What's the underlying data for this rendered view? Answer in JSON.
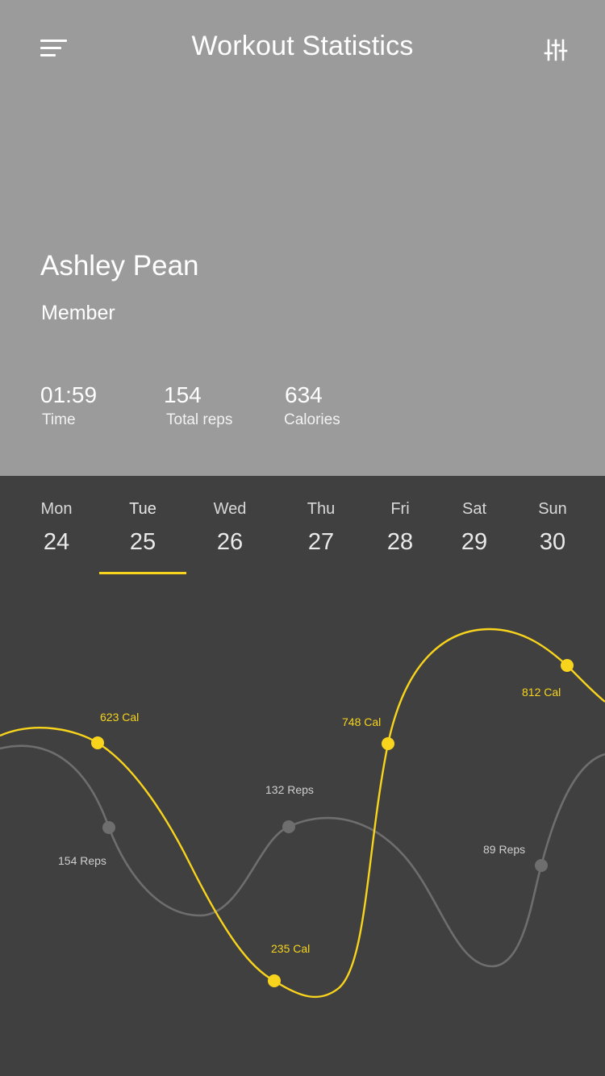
{
  "header": {
    "title": "Workout Statistics",
    "menu_icon": "hamburger-menu-icon",
    "filter_icon": "sliders-icon"
  },
  "profile": {
    "name": "Ashley Pean",
    "role": "Member"
  },
  "stats": [
    {
      "value": "01:59",
      "label": "Time"
    },
    {
      "value": "154",
      "label": "Total reps"
    },
    {
      "value": "634",
      "label": "Calories"
    }
  ],
  "days": [
    {
      "name": "Mon",
      "date": "24"
    },
    {
      "name": "Tue",
      "date": "25"
    },
    {
      "name": "Wed",
      "date": "26"
    },
    {
      "name": "Thu",
      "date": "27"
    },
    {
      "name": "Fri",
      "date": "28"
    },
    {
      "name": "Sat",
      "date": "29"
    },
    {
      "name": "Sun",
      "date": "30"
    }
  ],
  "selected_day": "Tue",
  "colors": {
    "header_bg": "#9b9b9b",
    "body_bg": "#404040",
    "accent": "#f8d41c",
    "reps_line": "#6e6e6e"
  },
  "chart_data": {
    "type": "line",
    "series": [
      {
        "name": "Calories",
        "labels": [
          "623 Cal",
          "235 Cal",
          "748 Cal",
          "812 Cal"
        ]
      },
      {
        "name": "Reps",
        "labels": [
          "154 Reps",
          "132 Reps",
          "89 Reps"
        ]
      }
    ]
  }
}
